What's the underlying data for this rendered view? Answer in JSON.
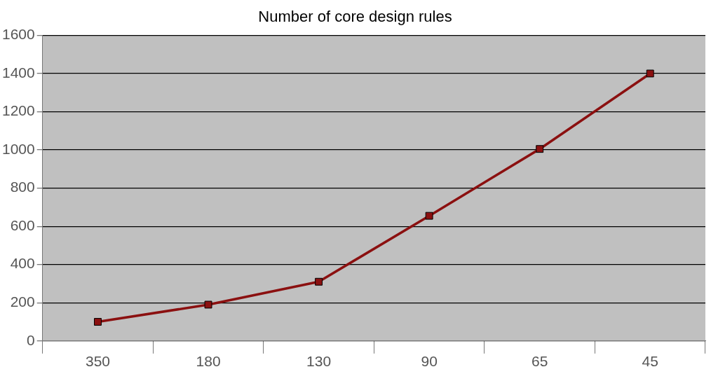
{
  "chart_data": {
    "type": "line",
    "title": "Number of core design rules",
    "categories": [
      "350",
      "180",
      "130",
      "90",
      "65",
      "45"
    ],
    "series": [
      {
        "color": "#8b1010",
        "values": [
          100,
          190,
          310,
          655,
          1005,
          1400
        ]
      }
    ],
    "ylim": [
      0,
      1600
    ],
    "yticks": [
      0,
      200,
      400,
      600,
      800,
      1000,
      1200,
      1400,
      1600
    ],
    "grid": "y",
    "legend": false,
    "marker": "square",
    "line_style": "solid"
  }
}
